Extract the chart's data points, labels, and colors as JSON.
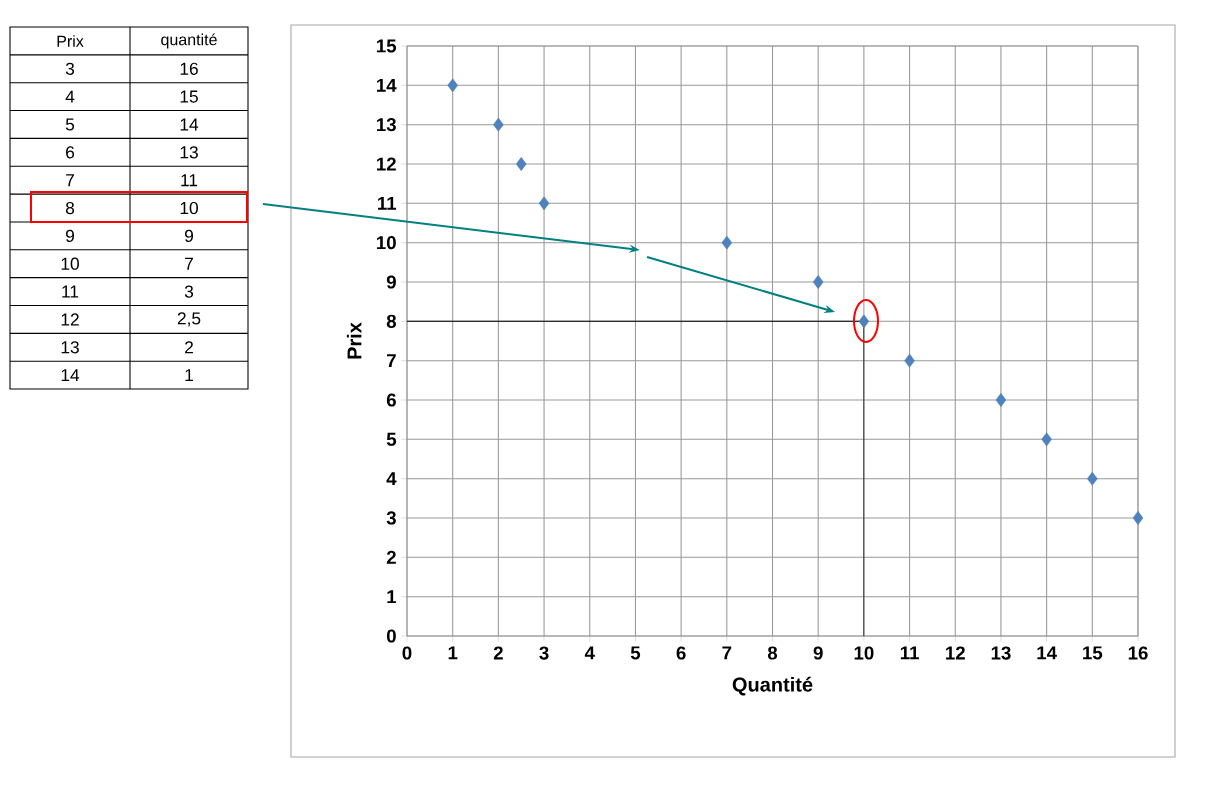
{
  "chart_data": {
    "type": "scatter",
    "xlabel": "Quantité",
    "ylabel": "Prix",
    "x": [
      16,
      15,
      14,
      13,
      11,
      10,
      9,
      7,
      3,
      2.5,
      2,
      1
    ],
    "values": [
      3,
      4,
      5,
      6,
      7,
      8,
      9,
      10,
      11,
      12,
      13,
      14
    ],
    "color": "#4f81bd",
    "marker": "diamond",
    "grid": true,
    "xlim": [
      0,
      16
    ],
    "xticks": [
      0,
      1,
      2,
      3,
      4,
      5,
      6,
      7,
      8,
      9,
      10,
      11,
      12,
      13,
      14,
      15,
      16
    ],
    "ylim": [
      0,
      15
    ],
    "yticks": [
      0,
      1,
      2,
      3,
      4,
      5,
      6,
      7,
      8,
      9,
      10,
      11,
      12,
      13,
      14,
      15
    ],
    "ref_lines": [
      {
        "axis": "x",
        "value": 10,
        "color": "#000000"
      },
      {
        "axis": "y",
        "value": 8,
        "color": "#000000"
      }
    ],
    "annotations": [
      "Prix",
      "quantité",
      "3",
      "16",
      "4",
      "15",
      "5",
      "14",
      "6",
      "13",
      "7",
      "11",
      "8",
      "10",
      "9",
      "9",
      "10",
      "7",
      "11",
      "3",
      "12",
      "2,5",
      "13",
      "2",
      "14",
      "1"
    ]
  }
}
